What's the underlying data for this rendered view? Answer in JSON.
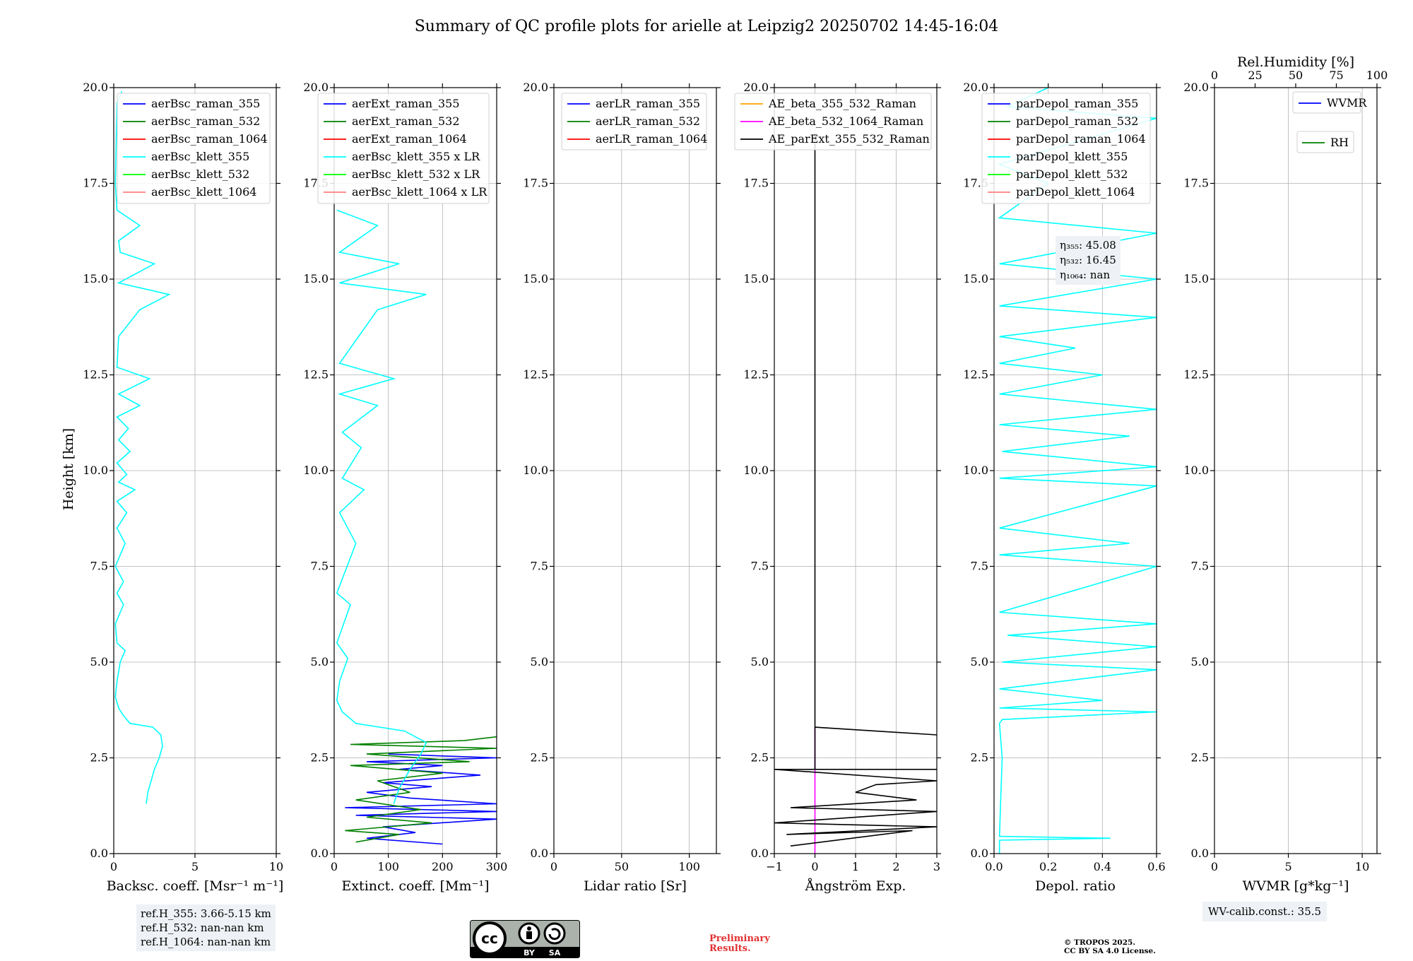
{
  "title": "Summary of QC profile plots for arielle at Leipzig2 20250702 14:45-16:04",
  "ylabel": "Height [km]",
  "y_ticks": [
    "0.0",
    "2.5",
    "5.0",
    "7.5",
    "10.0",
    "12.5",
    "15.0",
    "17.5",
    "20.0"
  ],
  "colors": {
    "raman_355": "#0000ff",
    "raman_532": "#008000",
    "raman_1064": "#ff0000",
    "klett_355": "#00ffff",
    "klett_532": "#00ff00",
    "klett_1064": "#ff8080",
    "ae_beta_355_532": "#ffa500",
    "ae_beta_532_1064": "#ff00ff",
    "ae_parext": "#000000",
    "wvmr": "#0000ff",
    "rh": "#008000"
  },
  "chart_data": [
    {
      "type": "line",
      "xlabel": "Backsc. coeff. [Msr⁻¹ m⁻¹]",
      "x_ticks": [
        "0",
        "5",
        "10"
      ],
      "xlim": [
        0,
        10
      ],
      "ylim": [
        0,
        20
      ],
      "legend_position": "top-right",
      "legend": [
        "aerBsc_raman_355",
        "aerBsc_raman_532",
        "aerBsc_raman_1064",
        "aerBsc_klett_355",
        "aerBsc_klett_532",
        "aerBsc_klett_1064"
      ],
      "series": [
        {
          "name": "aerBsc_klett_355",
          "color_key": "klett_355",
          "points": [
            [
              2.0,
              1.3
            ],
            [
              2.1,
              1.6
            ],
            [
              2.3,
              1.9
            ],
            [
              2.5,
              2.2
            ],
            [
              2.8,
              2.5
            ],
            [
              3.0,
              2.8
            ],
            [
              2.9,
              3.1
            ],
            [
              2.4,
              3.3
            ],
            [
              1.0,
              3.4
            ],
            [
              0.6,
              3.6
            ],
            [
              0.3,
              3.8
            ],
            [
              0.1,
              4.1
            ],
            [
              0.2,
              4.5
            ],
            [
              0.4,
              5.0
            ],
            [
              0.7,
              5.3
            ],
            [
              0.2,
              5.5
            ],
            [
              0.1,
              6.0
            ],
            [
              0.6,
              6.5
            ],
            [
              0.2,
              6.8
            ],
            [
              0.6,
              7.1
            ],
            [
              0.1,
              7.5
            ],
            [
              0.7,
              8.1
            ],
            [
              0.2,
              8.5
            ],
            [
              0.8,
              8.9
            ],
            [
              0.2,
              9.2
            ],
            [
              1.3,
              9.5
            ],
            [
              0.3,
              9.7
            ],
            [
              0.8,
              9.9
            ],
            [
              0.2,
              10.2
            ],
            [
              1.0,
              10.5
            ],
            [
              0.3,
              10.8
            ],
            [
              0.9,
              11.1
            ],
            [
              0.2,
              11.4
            ],
            [
              1.6,
              11.7
            ],
            [
              0.3,
              12.0
            ],
            [
              2.2,
              12.4
            ],
            [
              0.2,
              12.7
            ],
            [
              0.3,
              13.5
            ],
            [
              1.6,
              14.2
            ],
            [
              3.4,
              14.6
            ],
            [
              0.3,
              14.9
            ],
            [
              2.5,
              15.4
            ],
            [
              0.4,
              15.7
            ],
            [
              0.3,
              16.0
            ],
            [
              1.6,
              16.4
            ],
            [
              0.2,
              16.8
            ],
            [
              0.1,
              17.5
            ],
            [
              0.2,
              19.6
            ],
            [
              0.5,
              19.9
            ]
          ]
        }
      ]
    },
    {
      "type": "line",
      "xlabel": "Extinct. coeff. [Mm⁻¹]",
      "x_ticks": [
        "0",
        "100",
        "200",
        "300"
      ],
      "xlim": [
        0,
        300
      ],
      "ylim": [
        0,
        20
      ],
      "legend_position": "top-right",
      "legend": [
        "aerExt_raman_355",
        "aerExt_raman_532",
        "aerExt_raman_1064",
        "aerBsc_klett_355 x LR",
        "aerBsc_klett_532 x LR",
        "aerBsc_klett_1064 x LR"
      ],
      "series": [
        {
          "name": "aerExt_raman_355",
          "color_key": "raman_355",
          "points": [
            [
              200,
              0.25
            ],
            [
              60,
              0.4
            ],
            [
              150,
              0.55
            ],
            [
              90,
              0.7
            ],
            [
              300,
              0.9
            ],
            [
              40,
              1.0
            ],
            [
              300,
              1.1
            ],
            [
              20,
              1.2
            ],
            [
              300,
              1.3
            ],
            [
              140,
              1.45
            ],
            [
              60,
              1.6
            ],
            [
              180,
              1.75
            ],
            [
              90,
              1.85
            ],
            [
              270,
              2.05
            ],
            [
              120,
              2.2
            ],
            [
              200,
              2.3
            ],
            [
              60,
              2.4
            ],
            [
              300,
              2.5
            ],
            [
              100,
              2.6
            ]
          ]
        },
        {
          "name": "aerExt_raman_532",
          "color_key": "raman_532",
          "points": [
            [
              40,
              0.3
            ],
            [
              120,
              0.5
            ],
            [
              20,
              0.6
            ],
            [
              180,
              0.8
            ],
            [
              60,
              0.95
            ],
            [
              160,
              1.15
            ],
            [
              40,
              1.4
            ],
            [
              140,
              1.6
            ],
            [
              80,
              1.9
            ],
            [
              200,
              2.1
            ],
            [
              30,
              2.3
            ],
            [
              250,
              2.4
            ],
            [
              60,
              2.6
            ],
            [
              300,
              2.75
            ],
            [
              30,
              2.85
            ],
            [
              240,
              2.95
            ],
            [
              300,
              3.05
            ]
          ]
        },
        {
          "name": "aerBsc_klett_355 x LR",
          "color_key": "klett_355",
          "points": [
            [
              110,
              1.3
            ],
            [
              120,
              1.7
            ],
            [
              140,
              2.2
            ],
            [
              160,
              2.6
            ],
            [
              170,
              2.9
            ],
            [
              130,
              3.2
            ],
            [
              40,
              3.4
            ],
            [
              15,
              3.7
            ],
            [
              5,
              4.0
            ],
            [
              10,
              4.5
            ],
            [
              25,
              5.1
            ],
            [
              5,
              5.5
            ],
            [
              30,
              6.5
            ],
            [
              5,
              6.8
            ],
            [
              40,
              8.1
            ],
            [
              10,
              8.9
            ],
            [
              55,
              9.5
            ],
            [
              15,
              9.8
            ],
            [
              50,
              10.6
            ],
            [
              15,
              11.0
            ],
            [
              80,
              11.7
            ],
            [
              10,
              12.0
            ],
            [
              110,
              12.4
            ],
            [
              10,
              12.8
            ],
            [
              80,
              14.2
            ],
            [
              170,
              14.6
            ],
            [
              10,
              14.9
            ],
            [
              120,
              15.4
            ],
            [
              10,
              15.7
            ],
            [
              80,
              16.4
            ],
            [
              5,
              16.8
            ]
          ]
        }
      ]
    },
    {
      "type": "line",
      "xlabel": "Lidar ratio [Sr]",
      "x_ticks": [
        "0",
        "50",
        "100"
      ],
      "xlim": [
        0,
        120
      ],
      "ylim": [
        0,
        20
      ],
      "legend_position": "top-right",
      "legend": [
        "aerLR_raman_355",
        "aerLR_raman_532",
        "aerLR_raman_1064"
      ],
      "series": []
    },
    {
      "type": "line",
      "xlabel": "Ångström Exp.",
      "x_ticks": [
        "−1",
        "0",
        "1",
        "2",
        "3"
      ],
      "xlim": [
        -1,
        3
      ],
      "ylim": [
        0,
        20
      ],
      "legend_position": "top-right",
      "legend": [
        "AE_beta_355_532_Raman",
        "AE_beta_532_1064_Raman",
        "AE_parExt_355_532_Raman"
      ],
      "series": [
        {
          "name": "AE_beta_532_1064_Raman",
          "color_key": "ae_beta_532_1064",
          "points": [
            [
              0,
              0.0
            ],
            [
              0,
              3.3
            ]
          ]
        },
        {
          "name": "AE_parExt_355_532_Raman",
          "color_key": "ae_parext",
          "points": [
            [
              -0.6,
              0.2
            ],
            [
              2.4,
              0.6
            ],
            [
              -0.7,
              0.5
            ],
            [
              3,
              0.7
            ],
            [
              -1,
              0.8
            ],
            [
              3,
              1.1
            ],
            [
              -0.6,
              1.2
            ],
            [
              2.5,
              1.4
            ],
            [
              1.0,
              1.6
            ],
            [
              1.5,
              1.8
            ],
            [
              3,
              1.9
            ],
            [
              -1,
              2.2
            ],
            [
              3,
              2.2
            ],
            [
              0,
              2.2
            ],
            [
              0,
              3.3
            ],
            [
              3,
              3.1
            ],
            [
              0,
              3.3
            ],
            [
              0,
              18.8
            ]
          ]
        }
      ]
    },
    {
      "type": "line",
      "xlabel": "Depol. ratio",
      "x_ticks": [
        "0.0",
        "0.2",
        "0.4",
        "0.6"
      ],
      "xlim": [
        0,
        0.6
      ],
      "ylim": [
        0,
        20
      ],
      "legend_position": "top-right",
      "legend": [
        "parDepol_raman_355",
        "parDepol_raman_532",
        "parDepol_raman_1064",
        "parDepol_klett_355",
        "parDepol_klett_532",
        "parDepol_klett_1064"
      ],
      "series": [
        {
          "name": "parDepol_klett_355",
          "color_key": "klett_355",
          "points": [
            [
              0.02,
              0.0
            ],
            [
              0.02,
              0.35
            ],
            [
              0.43,
              0.4
            ],
            [
              0.02,
              0.45
            ],
            [
              0.025,
              1.5
            ],
            [
              0.03,
              2.5
            ],
            [
              0.02,
              3.4
            ],
            [
              0.03,
              3.5
            ],
            [
              0.6,
              3.7
            ],
            [
              0.02,
              3.8
            ],
            [
              0.4,
              4.0
            ],
            [
              0.02,
              4.3
            ],
            [
              0.6,
              4.8
            ],
            [
              0.03,
              5.0
            ],
            [
              0.6,
              5.4
            ],
            [
              0.05,
              5.7
            ],
            [
              0.6,
              6.0
            ],
            [
              0.02,
              6.3
            ],
            [
              0.6,
              7.5
            ],
            [
              0.02,
              7.8
            ],
            [
              0.5,
              8.1
            ],
            [
              0.02,
              8.5
            ],
            [
              0.6,
              9.6
            ],
            [
              0.02,
              9.8
            ],
            [
              0.6,
              10.1
            ],
            [
              0.03,
              10.5
            ],
            [
              0.5,
              10.9
            ],
            [
              0.02,
              11.2
            ],
            [
              0.6,
              11.6
            ],
            [
              0.02,
              12.0
            ],
            [
              0.4,
              12.5
            ],
            [
              0.02,
              12.8
            ],
            [
              0.3,
              13.2
            ],
            [
              0.02,
              13.5
            ],
            [
              0.6,
              14.0
            ],
            [
              0.02,
              14.3
            ],
            [
              0.6,
              15.0
            ],
            [
              0.02,
              15.4
            ],
            [
              0.6,
              16.2
            ],
            [
              0.02,
              16.6
            ],
            [
              0.2,
              17.5
            ],
            [
              0.02,
              18.0
            ],
            [
              0.6,
              19.2
            ],
            [
              0.05,
              19.5
            ],
            [
              0.2,
              20.0
            ]
          ]
        }
      ]
    },
    {
      "type": "line",
      "xlabel": "WVMR [g*kg⁻¹]",
      "x_ticks": [
        "0",
        "5",
        "10"
      ],
      "xlim": [
        0,
        11
      ],
      "ylim": [
        0,
        20
      ],
      "top_xlabel": "Rel.Humidity [%]",
      "top_x_ticks": [
        "0",
        "25",
        "50",
        "75",
        "100"
      ],
      "legend": [
        "WVMR",
        "RH"
      ],
      "series": []
    }
  ],
  "annotations": {
    "ref_heights": [
      "ref.H_355: 3.66-5.15 km",
      "ref.H_532: nan-nan km",
      "ref.H_1064: nan-nan km"
    ],
    "eta": [
      "η₃₅₅: 45.08",
      "η₅₃₂: 16.45",
      "η₁₀₆₄: nan"
    ],
    "wv_calib": "WV-calib.const.: 35.5",
    "license_badge": [
      "BY",
      "SA"
    ],
    "preliminary": [
      "Preliminary",
      "Results."
    ],
    "copyright": [
      "© TROPOS 2025.",
      "CC BY SA 4.0 License."
    ]
  }
}
